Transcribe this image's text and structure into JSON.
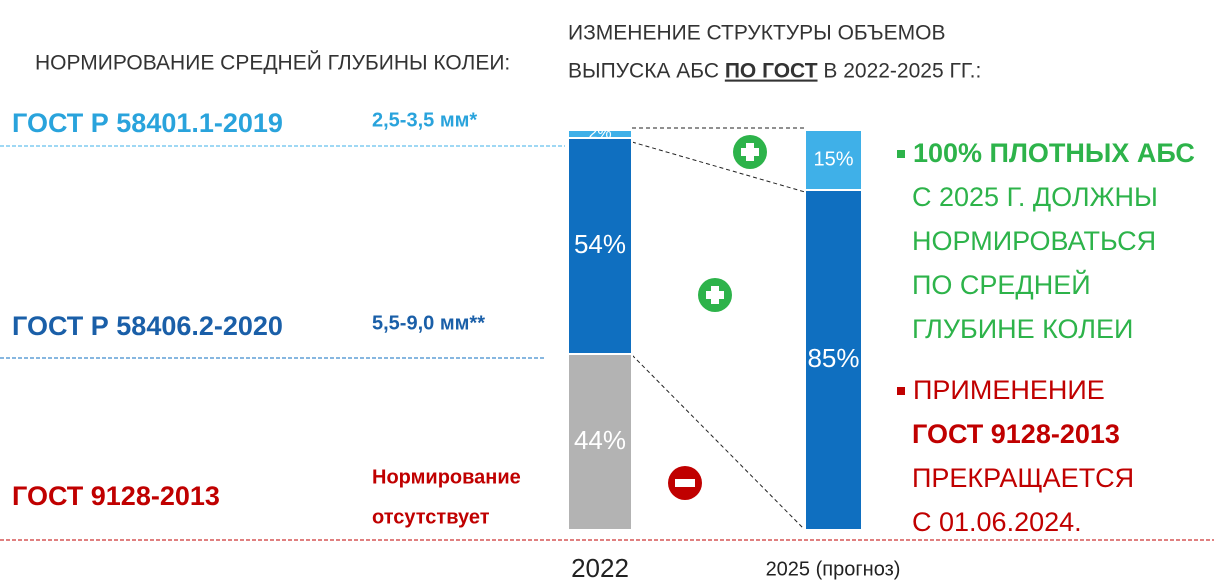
{
  "left_title": "НОРМИРОВАНИЕ СРЕДНЕЙ ГЛУБИНЫ КОЛЕИ:",
  "gost_rows": [
    {
      "name": "ГОСТ Р 58401.1-2019",
      "norm_lines": [
        "2,5-3,5 мм*"
      ]
    },
    {
      "name": "ГОСТ Р 58406.2-2020",
      "norm_lines": [
        "5,5-9,0 мм**"
      ]
    },
    {
      "name": "ГОСТ 9128-2013",
      "norm_lines": [
        "Нормирование",
        "отсутствует"
      ]
    }
  ],
  "chart_data": {
    "type": "bar",
    "stacked": true,
    "title_lines": [
      [
        "ИЗМЕНЕНИЕ СТРУКТУРЫ ОБЪЕМОВ"
      ],
      [
        "ВЫПУСКА АБС ",
        "ПО ГОСТ",
        " В 2022-2025 ГГ.:"
      ]
    ],
    "categories": [
      "2022",
      "2025 (прогноз)"
    ],
    "ylim": [
      0,
      100
    ],
    "series": [
      {
        "color": "#b3b3b3",
        "values": [
          44,
          null
        ],
        "value_labels": [
          "44%",
          null
        ]
      },
      {
        "color": "#0f6fc0",
        "values": [
          54,
          85
        ],
        "value_labels": [
          "54%",
          "85%"
        ]
      },
      {
        "color": "#3fb0e8",
        "values": [
          2,
          15
        ],
        "value_labels": [
          "2%",
          "15%"
        ]
      }
    ]
  },
  "right_points": [
    {
      "color": "#2db34a",
      "lines": [
        "100% ПЛОТНЫХ АБС",
        "С 2025 Г. ДОЛЖНЫ",
        "НОРМИРОВАТЬСЯ",
        "ПО СРЕДНЕЙ",
        "ГЛУБИНЕ КОЛЕИ"
      ],
      "bold": [
        0
      ]
    },
    {
      "color": "#c00000",
      "lines": [
        "ПРИМЕНЕНИЕ",
        "ГОСТ 9128-2013",
        "ПРЕКРАЩАЕТСЯ",
        "С 01.06.2024."
      ],
      "bold": [
        1
      ]
    }
  ]
}
